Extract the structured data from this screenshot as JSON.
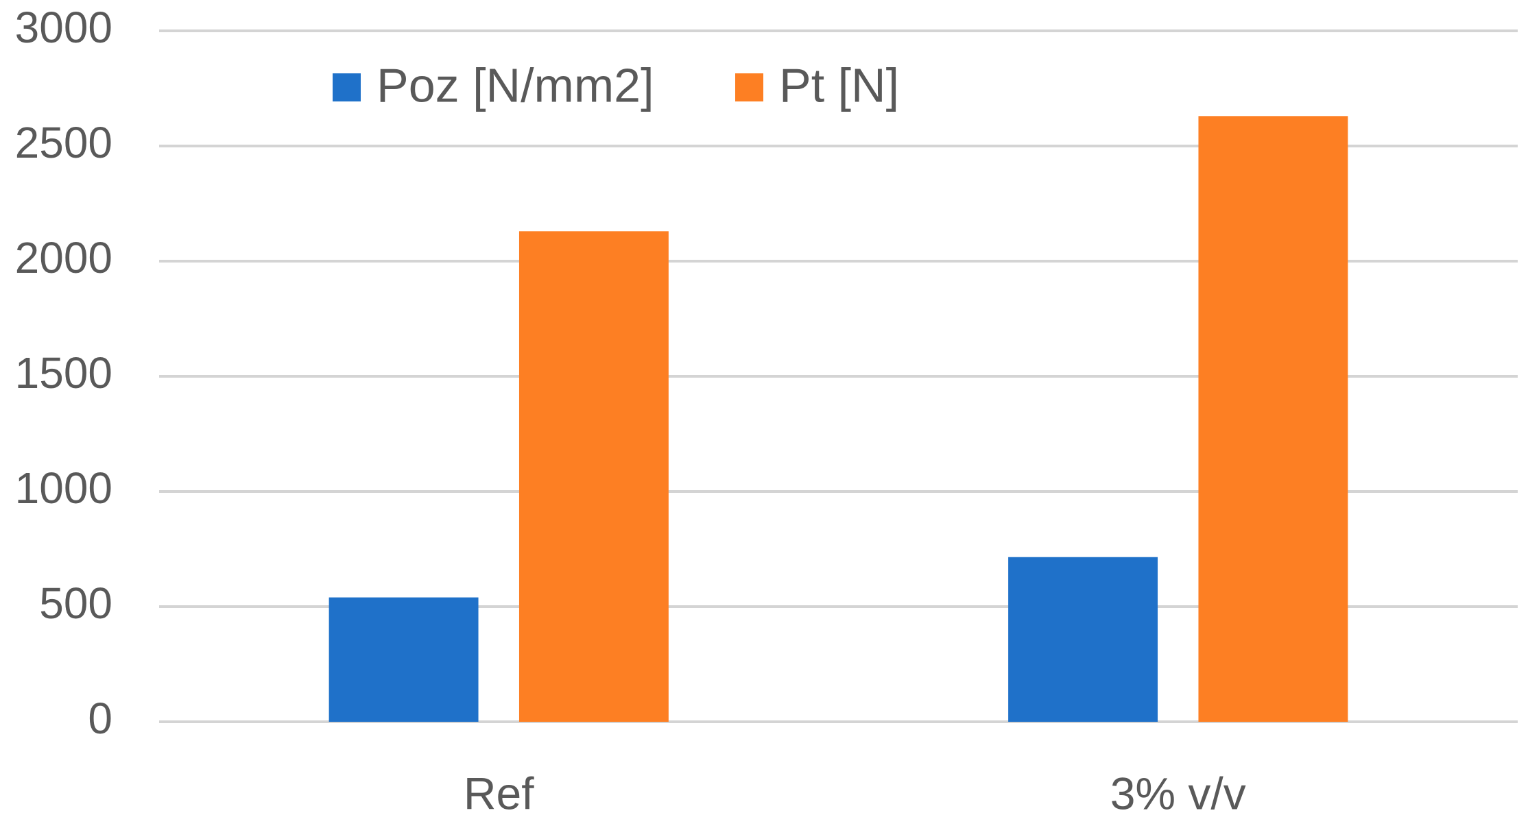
{
  "chart_data": {
    "type": "bar",
    "categories": [
      "Ref",
      "3% v/v"
    ],
    "series": [
      {
        "name": "Poz [N/mm2]",
        "color": "#1f71c9",
        "values": [
          540,
          715
        ]
      },
      {
        "name": "Pt [N]",
        "color": "#fd7f23",
        "values": [
          2130,
          2630
        ]
      }
    ],
    "ylim": [
      0,
      3000
    ],
    "yticks": [
      0,
      500,
      1000,
      1500,
      2000,
      2500,
      3000
    ],
    "grid": true,
    "legend": "top"
  }
}
